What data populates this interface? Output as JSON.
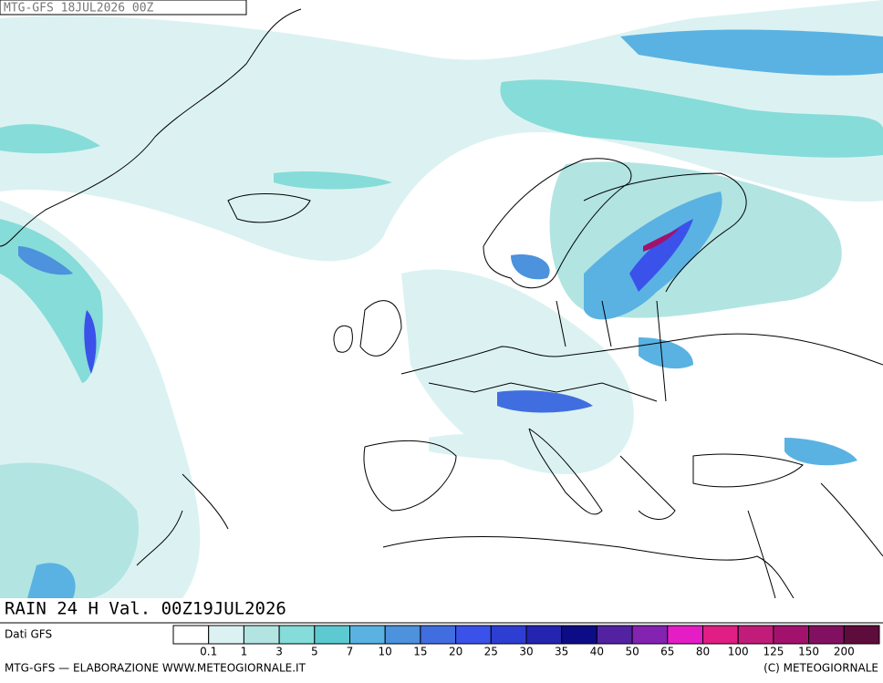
{
  "header": {
    "run": "MTG-GFS 18JUL2026 00Z"
  },
  "title": "RAIN 24 H Val. 00Z19JUL2026",
  "source": "Dati GFS",
  "legend": {
    "colors": [
      "#ffffff",
      "#dcf2f2",
      "#b2e4e2",
      "#86dcd8",
      "#5ccad0",
      "#5ab2e2",
      "#4c92dc",
      "#406ee0",
      "#3a52ea",
      "#2e3ed2",
      "#2424b0",
      "#0c0c86",
      "#5222a2",
      "#8422b2",
      "#e41ec4",
      "#e01e84",
      "#c21c7a",
      "#a2126c",
      "#821060",
      "#5e0c3c"
    ],
    "labels": [
      "0.1",
      "1",
      "3",
      "5",
      "7",
      "10",
      "15",
      "20",
      "25",
      "30",
      "35",
      "40",
      "50",
      "65",
      "80",
      "100",
      "125",
      "150",
      "200"
    ]
  },
  "footer": {
    "left": "MTG-GFS — ELABORAZIONE WWW.METEOGIORNALE.IT",
    "right": "(C) METEOGIORNALE"
  }
}
